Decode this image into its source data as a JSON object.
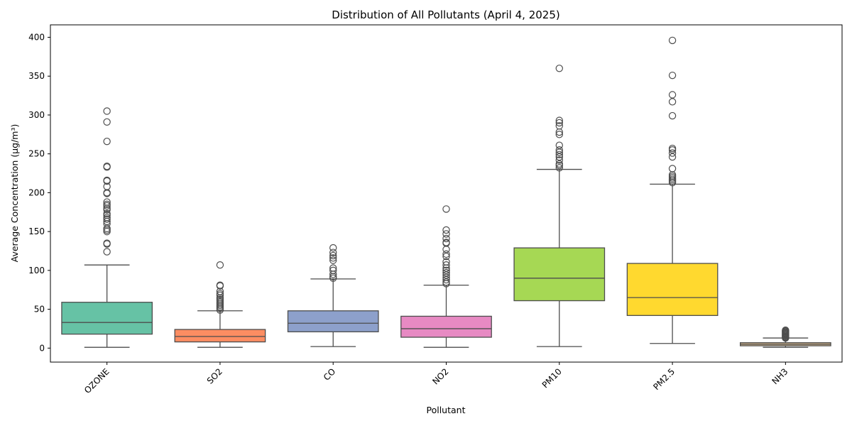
{
  "chart_data": {
    "type": "box",
    "title": "Distribution of All Pollutants (April 4, 2025)",
    "xlabel": "Pollutant",
    "ylabel": "Average Concentration (µg/m³)",
    "ylim": [
      -18,
      416
    ],
    "yticks": [
      0,
      50,
      100,
      150,
      200,
      250,
      300,
      350,
      400
    ],
    "grid": false,
    "categories": [
      "OZONE",
      "SO2",
      "CO",
      "NO2",
      "PM10",
      "PM2.5",
      "NH3"
    ],
    "boxes": [
      {
        "name": "OZONE",
        "color": "#66c2a5",
        "whislo": 1,
        "q1": 18,
        "median": 33,
        "q3": 59,
        "whishi": 107,
        "fliers": [
          124,
          134,
          135,
          150,
          152,
          154,
          160,
          163,
          166,
          168,
          171,
          173,
          178,
          180,
          183,
          185,
          188,
          199,
          200,
          208,
          215,
          216,
          233,
          234,
          266,
          291,
          305
        ]
      },
      {
        "name": "SO2",
        "color": "#fc8d62",
        "whislo": 1,
        "q1": 8,
        "median": 15,
        "q3": 24,
        "whishi": 48,
        "fliers": [
          49,
          51,
          53,
          55,
          57,
          59,
          61,
          63,
          65,
          68,
          70,
          73,
          80,
          81,
          107
        ]
      },
      {
        "name": "CO",
        "color": "#8da0cb",
        "whislo": 2,
        "q1": 21,
        "median": 32,
        "q3": 48,
        "whishi": 89,
        "fliers": [
          90,
          92,
          95,
          100,
          103,
          113,
          116,
          119,
          123,
          129
        ]
      },
      {
        "name": "NO2",
        "color": "#e78ac3",
        "whislo": 1,
        "q1": 14,
        "median": 25,
        "q3": 41,
        "whishi": 81,
        "fliers": [
          83,
          85,
          88,
          91,
          94,
          97,
          100,
          103,
          107,
          111,
          118,
          121,
          127,
          135,
          136,
          141,
          147,
          152,
          179
        ]
      },
      {
        "name": "PM10",
        "color": "#a6d854",
        "whislo": 2,
        "q1": 61,
        "median": 90,
        "q3": 129,
        "whishi": 230,
        "fliers": [
          232,
          235,
          237,
          242,
          246,
          249,
          252,
          255,
          261,
          275,
          278,
          286,
          290,
          293,
          360
        ]
      },
      {
        "name": "PM2.5",
        "color": "#ffd92f",
        "whislo": 6,
        "q1": 42,
        "median": 65,
        "q3": 109,
        "whishi": 211,
        "fliers": [
          213,
          215,
          217,
          219,
          221,
          223,
          231,
          246,
          251,
          255,
          257,
          299,
          317,
          326,
          351,
          396
        ]
      },
      {
        "name": "NH3",
        "color": "#e5c494",
        "whislo": 1,
        "q1": 3,
        "median": 5,
        "q3": 7,
        "whishi": 13,
        "fliers": [
          13,
          14,
          15,
          16,
          17,
          18,
          19,
          20,
          21,
          22,
          23
        ]
      }
    ]
  }
}
